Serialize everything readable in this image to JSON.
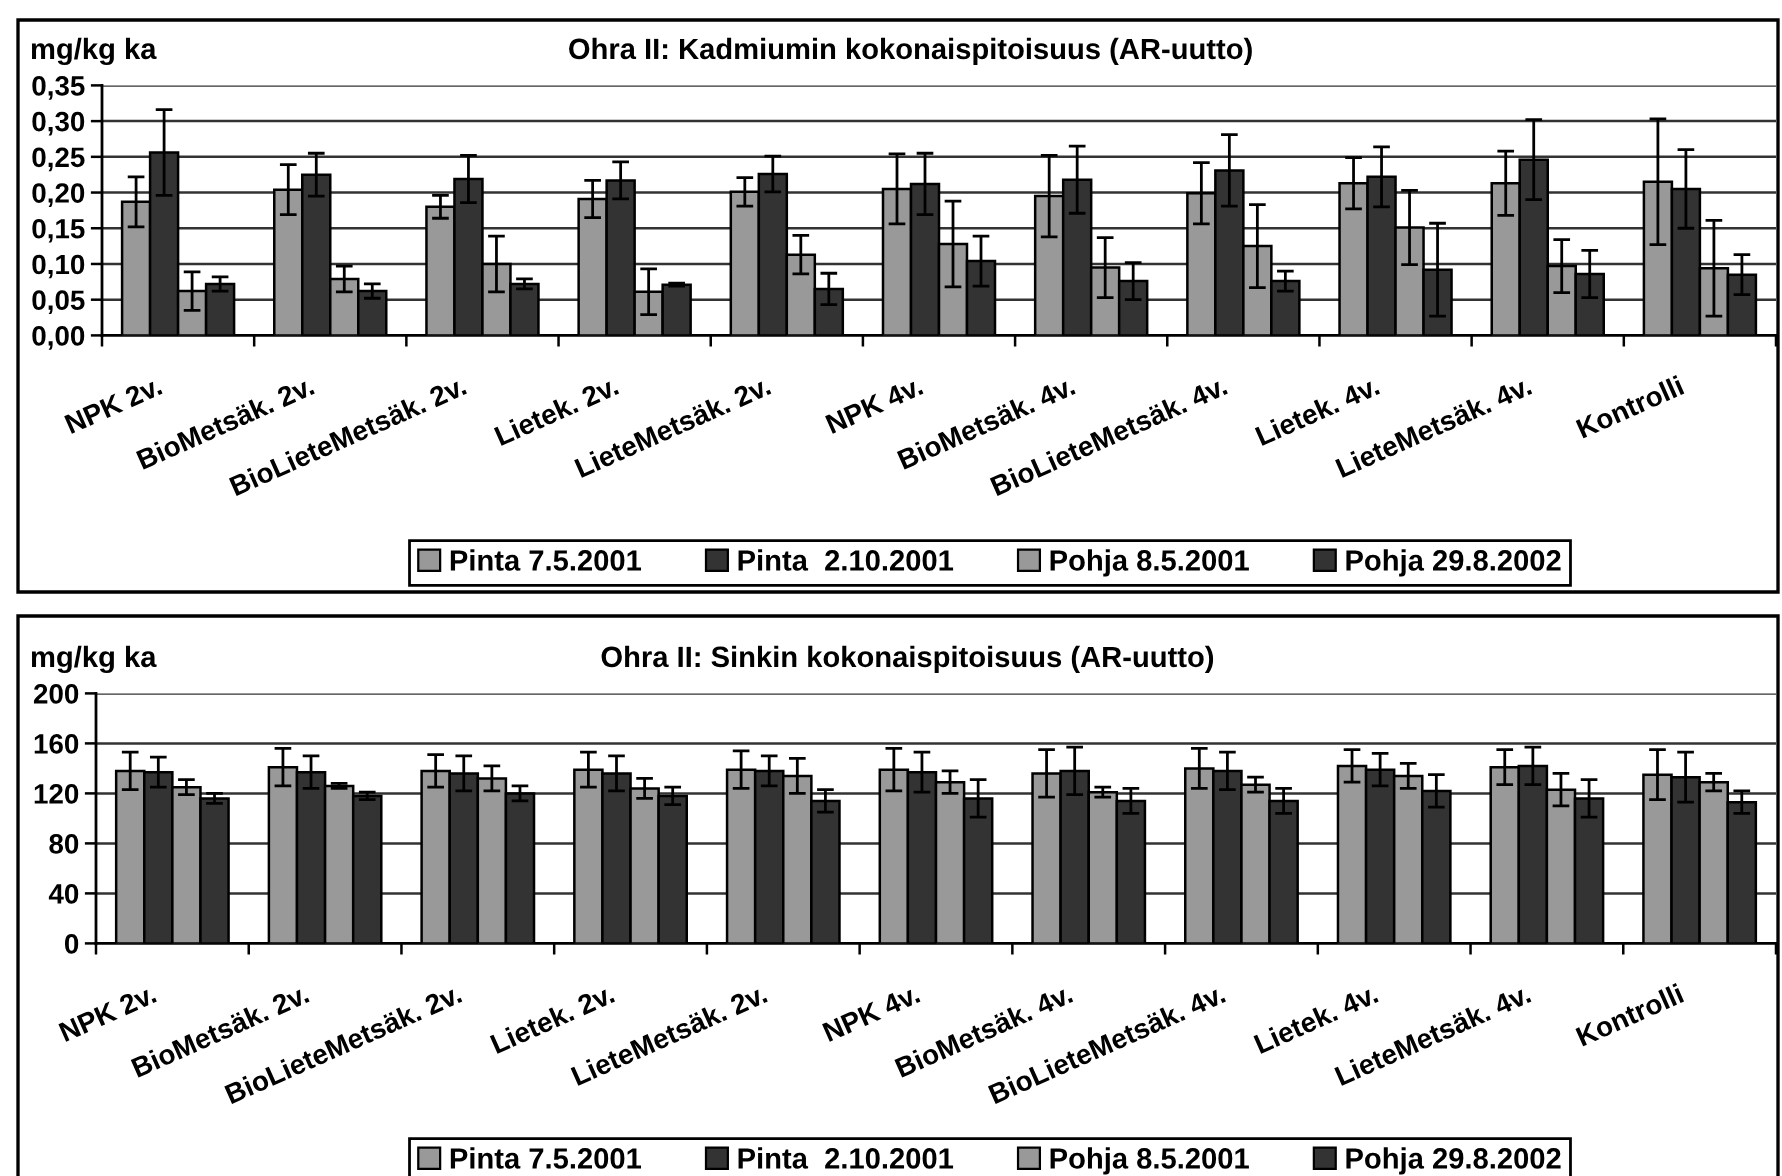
{
  "chart_data": [
    {
      "type": "bar",
      "title": "Ohra II: Kadmiumin kokonaispitoisuus (AR-uutto)",
      "ylabel": "mg/kg ka",
      "categories": [
        "NPK 2v.",
        "BioMetsäk. 2v.",
        "BioLieteMetsäk. 2v.",
        "Lietek. 2v.",
        "LieteMetsäk. 2v.",
        "NPK 4v.",
        "BioMetsäk. 4v.",
        "BioLieteMetsäk. 4v.",
        "Lietek. 4v.",
        "LieteMetsäk. 4v.",
        "Kontrolli"
      ],
      "series": [
        {
          "name": "Pinta 7.5.2001",
          "color": "#999999",
          "values": [
            0.187,
            0.204,
            0.18,
            0.191,
            0.201,
            0.205,
            0.195,
            0.199,
            0.213,
            0.213,
            0.215
          ],
          "errors": [
            0.035,
            0.035,
            0.016,
            0.026,
            0.02,
            0.049,
            0.057,
            0.043,
            0.036,
            0.045,
            0.088
          ]
        },
        {
          "name": "Pinta  2.10.2001",
          "color": "#333333",
          "values": [
            0.256,
            0.225,
            0.219,
            0.217,
            0.226,
            0.212,
            0.218,
            0.231,
            0.222,
            0.246,
            0.205
          ],
          "errors": [
            0.06,
            0.03,
            0.033,
            0.026,
            0.025,
            0.043,
            0.047,
            0.05,
            0.042,
            0.056,
            0.055
          ]
        },
        {
          "name": "Pohja 8.5.2001",
          "color": "#999999",
          "values": [
            0.062,
            0.079,
            0.1,
            0.061,
            0.113,
            0.128,
            0.095,
            0.125,
            0.151,
            0.097,
            0.094
          ],
          "errors": [
            0.027,
            0.018,
            0.039,
            0.032,
            0.027,
            0.06,
            0.042,
            0.058,
            0.052,
            0.037,
            0.067
          ]
        },
        {
          "name": "Pohja 29.8.2002",
          "color": "#333333",
          "values": [
            0.072,
            0.062,
            0.072,
            0.071,
            0.065,
            0.104,
            0.076,
            0.076,
            0.092,
            0.086,
            0.085
          ],
          "errors": [
            0.01,
            0.01,
            0.007,
            0.002,
            0.022,
            0.035,
            0.026,
            0.014,
            0.065,
            0.033,
            0.028
          ]
        }
      ],
      "ylim": [
        0,
        0.35
      ],
      "yticks": [
        {
          "value": 0,
          "label": "0,00"
        },
        {
          "value": 0.05,
          "label": "0,05"
        },
        {
          "value": 0.1,
          "label": "0,10"
        },
        {
          "value": 0.15,
          "label": "0,15"
        },
        {
          "value": 0.2,
          "label": "0,20"
        },
        {
          "value": 0.25,
          "label": "0,25"
        },
        {
          "value": 0.3,
          "label": "0,30"
        },
        {
          "value": 0.35,
          "label": "0,35"
        }
      ],
      "grid": "y",
      "legend": "bottom"
    },
    {
      "type": "bar",
      "title": "Ohra II: Sinkin kokonaispitoisuus (AR-uutto)",
      "ylabel": "mg/kg ka",
      "categories": [
        "NPK 2v.",
        "BioMetsäk. 2v.",
        "BioLieteMetsäk. 2v.",
        "Lietek. 2v.",
        "LieteMetsäk. 2v.",
        "NPK 4v.",
        "BioMetsäk. 4v.",
        "BioLieteMetsäk. 4v.",
        "Lietek. 4v.",
        "LieteMetsäk. 4v.",
        "Kontrolli"
      ],
      "series": [
        {
          "name": "Pinta 7.5.2001",
          "color": "#999999",
          "values": [
            138,
            141,
            138,
            139,
            139,
            139,
            136,
            140,
            142,
            141,
            135
          ],
          "errors": [
            15,
            15,
            13,
            14,
            15,
            17,
            19,
            16,
            13,
            14,
            20
          ]
        },
        {
          "name": "Pinta  2.10.2001",
          "color": "#333333",
          "values": [
            137,
            137,
            136,
            136,
            138,
            137,
            138,
            138,
            139,
            142,
            133
          ],
          "errors": [
            12,
            13,
            14,
            14,
            12,
            16,
            19,
            15,
            13,
            15,
            20
          ]
        },
        {
          "name": "Pohja 8.5.2001",
          "color": "#999999",
          "values": [
            125,
            126,
            132,
            124,
            134,
            129,
            121,
            127,
            134,
            123,
            129
          ],
          "errors": [
            6,
            2,
            10,
            8,
            14,
            9,
            4,
            6,
            10,
            13,
            7
          ]
        },
        {
          "name": "Pohja 29.8.2002",
          "color": "#333333",
          "values": [
            116,
            118,
            120,
            118,
            114,
            116,
            114,
            114,
            122,
            116,
            113
          ],
          "errors": [
            4,
            3,
            6,
            7,
            9,
            15,
            10,
            10,
            13,
            15,
            9
          ]
        }
      ],
      "ylim": [
        0,
        200
      ],
      "yticks": [
        0,
        40,
        80,
        120,
        160,
        200
      ],
      "grid": "y",
      "legend": "bottom"
    }
  ]
}
